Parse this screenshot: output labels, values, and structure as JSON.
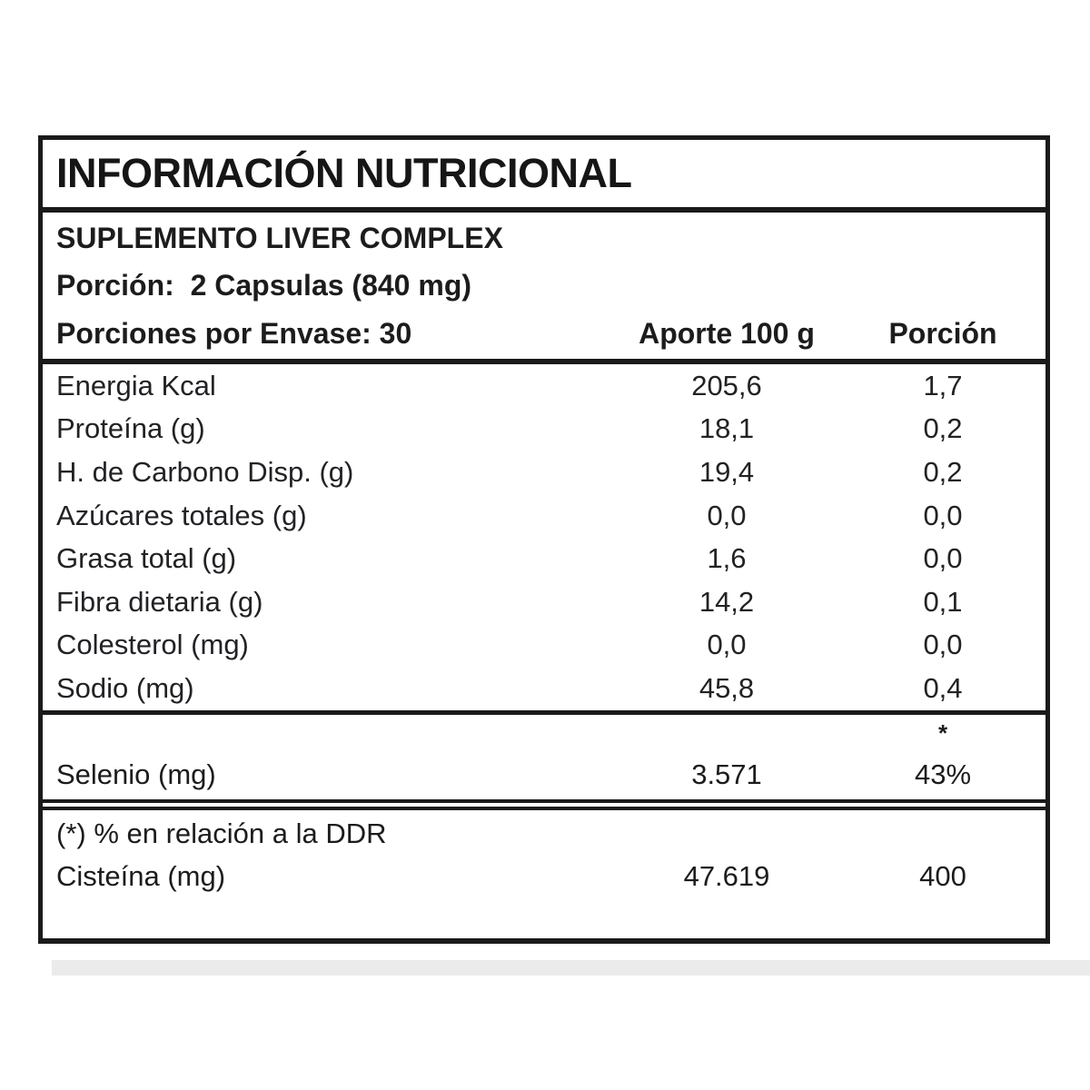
{
  "colors": {
    "border": "#1a1a1a",
    "text": "#1c1c1e",
    "background": "#ffffff",
    "stripe": "#ebebeb"
  },
  "label": {
    "title": "INFORMACIÓN NUTRICIONAL",
    "product_name": "SUPLEMENTO LIVER COMPLEX",
    "serving_line": "Porción:  2 Capsulas (840 mg)",
    "servings_per_container": "Porciones por Envase: 30",
    "columns": {
      "per100": "Aporte 100 g",
      "portion": "Porción"
    },
    "asterisk_marker": "*",
    "footnote": "(*) % en relación a la DDR"
  },
  "rows": [
    {
      "name": "Energia Kcal",
      "per100": "205,6",
      "portion": "1,7"
    },
    {
      "name": "Proteína (g)",
      "per100": "18,1",
      "portion": "0,2"
    },
    {
      "name": "H. de Carbono Disp. (g)",
      "per100": "19,4",
      "portion": "0,2"
    },
    {
      "name": "Azúcares totales (g)",
      "per100": "0,0",
      "portion": "0,0"
    },
    {
      "name": "Grasa total (g)",
      "per100": "1,6",
      "portion": "0,0"
    },
    {
      "name": "Fibra dietaria (g)",
      "per100": "14,2",
      "portion": "0,1"
    },
    {
      "name": "Colesterol (mg)",
      "per100": "0,0",
      "portion": "0,0"
    },
    {
      "name": "Sodio (mg)",
      "per100": "45,8",
      "portion": "0,4"
    }
  ],
  "selenium_row": {
    "name": "Selenio (mg)",
    "per100": "3.571",
    "portion": "43%"
  },
  "cysteine_row": {
    "name": "Cisteína (mg)",
    "per100": "47.619",
    "portion": "400"
  }
}
